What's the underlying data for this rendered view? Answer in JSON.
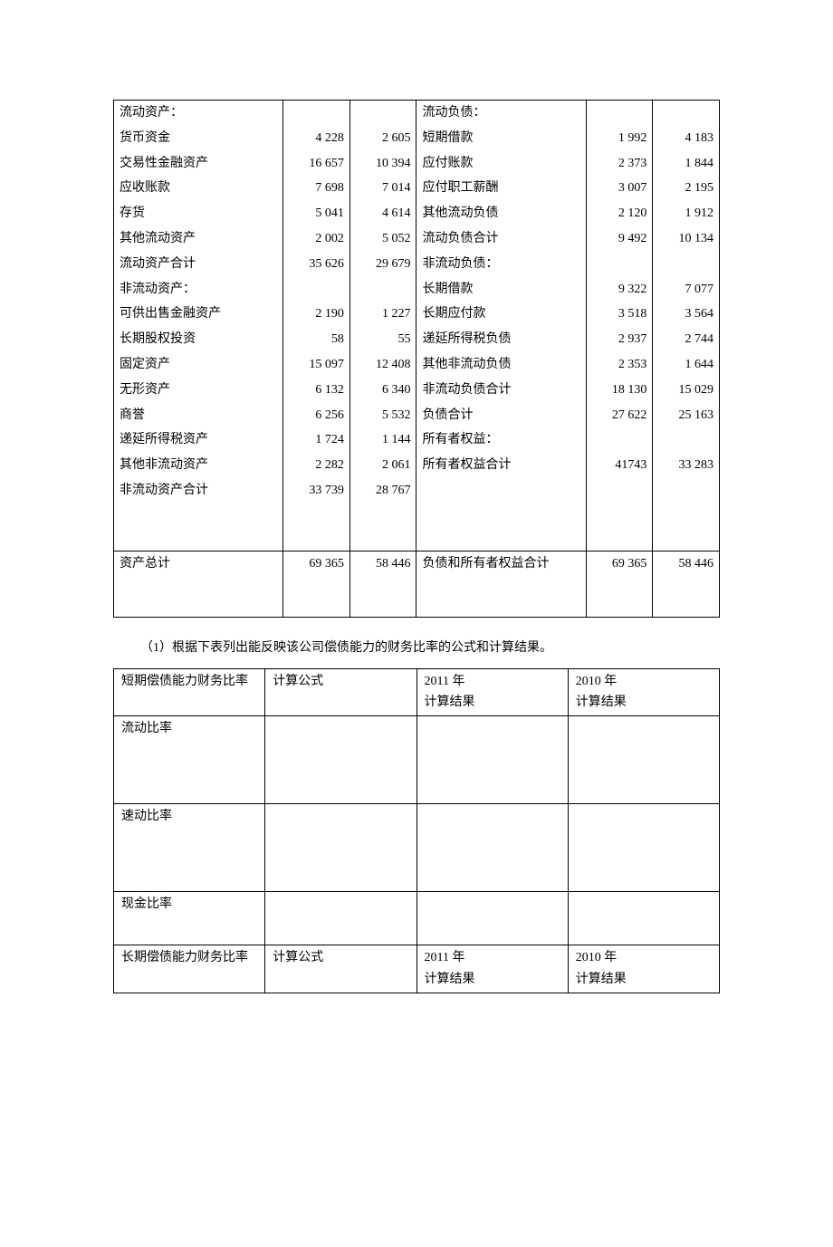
{
  "balance": {
    "rows": [
      {
        "l_label": "流动资产：",
        "l_c1": "",
        "l_c2": "",
        "r_label": "流动负债：",
        "r_c1": "",
        "r_c2": "",
        "l_indent": false,
        "r_indent": false
      },
      {
        "l_label": "货币资金",
        "l_c1": "4 228",
        "l_c2": "2 605",
        "r_label": "短期借款",
        "r_c1": "1 992",
        "r_c2": "4 183",
        "l_indent": true,
        "r_indent": true
      },
      {
        "l_label": "交易性金融资产",
        "l_c1": "16 657",
        "l_c2": "10 394",
        "r_label": "应付账款",
        "r_c1": "2 373",
        "r_c2": "1 844",
        "l_indent": true,
        "r_indent": true
      },
      {
        "l_label": "应收账款",
        "l_c1": "7 698",
        "l_c2": "7 014",
        "r_label": "应付职工薪酬",
        "r_c1": "3 007",
        "r_c2": "2 195",
        "l_indent": true,
        "r_indent": true
      },
      {
        "l_label": "存货",
        "l_c1": "5 041",
        "l_c2": "4 614",
        "r_label": "其他流动负债",
        "r_c1": "2 120",
        "r_c2": "1 912",
        "l_indent": true,
        "r_indent": true
      },
      {
        "l_label": "其他流动资产",
        "l_c1": "2 002",
        "l_c2": "5 052",
        "r_label": "流动负债合计",
        "r_c1": "9 492",
        "r_c2": "10 134",
        "l_indent": true,
        "r_indent": false
      },
      {
        "l_label": "流动资产合计",
        "l_c1": "35 626",
        "l_c2": "29 679",
        "r_label": "非流动负债：",
        "r_c1": "",
        "r_c2": "",
        "l_indent": false,
        "r_indent": false
      },
      {
        "l_label": "非流动资产：",
        "l_c1": "",
        "l_c2": "",
        "r_label": "长期借款",
        "r_c1": "9 322",
        "r_c2": "7 077",
        "l_indent": false,
        "r_indent": true
      },
      {
        "l_label": "可供出售金融资产",
        "l_c1": "2 190",
        "l_c2": "1 227",
        "r_label": "长期应付款",
        "r_c1": "3 518",
        "r_c2": "3 564",
        "l_indent": true,
        "r_indent": true
      },
      {
        "l_label": "长期股权投资",
        "l_c1": "58",
        "l_c2": "55",
        "r_label": "递延所得税负债",
        "r_c1": "2 937",
        "r_c2": "2 744",
        "l_indent": true,
        "r_indent": true
      },
      {
        "l_label": "固定资产",
        "l_c1": "15 097",
        "l_c2": "12 408",
        "r_label": "其他非流动负债",
        "r_c1": "2 353",
        "r_c2": "1 644",
        "l_indent": true,
        "r_indent": true
      },
      {
        "l_label": "无形资产",
        "l_c1": "6 132",
        "l_c2": "6 340",
        "r_label": "非流动负债合计",
        "r_c1": "18 130",
        "r_c2": "15 029",
        "l_indent": true,
        "r_indent": false
      },
      {
        "l_label": "商誉",
        "l_c1": "6 256",
        "l_c2": "5 532",
        "r_label": "负债合计",
        "r_c1": "27 622",
        "r_c2": "25 163",
        "l_indent": true,
        "r_indent": false
      },
      {
        "l_label": "递延所得税资产",
        "l_c1": "1 724",
        "l_c2": "1 144",
        "r_label": "所有者权益：",
        "r_c1": "",
        "r_c2": "",
        "l_indent": true,
        "r_indent": false
      },
      {
        "l_label": "其他非流动资产",
        "l_c1": "2 282",
        "l_c2": "2 061",
        "r_label": "所有者权益合计",
        "r_c1": "41743",
        "r_c2": "33 283",
        "l_indent": true,
        "r_indent": false
      },
      {
        "l_label": "非流动资产合计",
        "l_c1": "33 739",
        "l_c2": "28 767",
        "r_label": "",
        "r_c1": "",
        "r_c2": "",
        "l_indent": true,
        "r_indent": false
      }
    ],
    "total": {
      "l_label": "资产总计",
      "l_c1": "69 365",
      "l_c2": "58 446",
      "r_label": "负债和所有者权益合计",
      "r_c1": "69 365",
      "r_c2": "58 446"
    },
    "col_widths": {
      "label": "28%",
      "num": "11%"
    }
  },
  "prompt_text": "（1）根据下表列出能反映该公司偿债能力的财务比率的公式和计算结果。",
  "ratio": {
    "cols": [
      "短期偿债能力财务比率",
      "计算公式",
      "2011 年\n计算结果",
      "2010 年\n计算结果"
    ],
    "short_rows": [
      "流动比率",
      "速动比率",
      "现金比率"
    ],
    "long_header": "长期偿债能力财务比率",
    "col_widths": [
      "25%",
      "25%",
      "25%",
      "25%"
    ]
  }
}
